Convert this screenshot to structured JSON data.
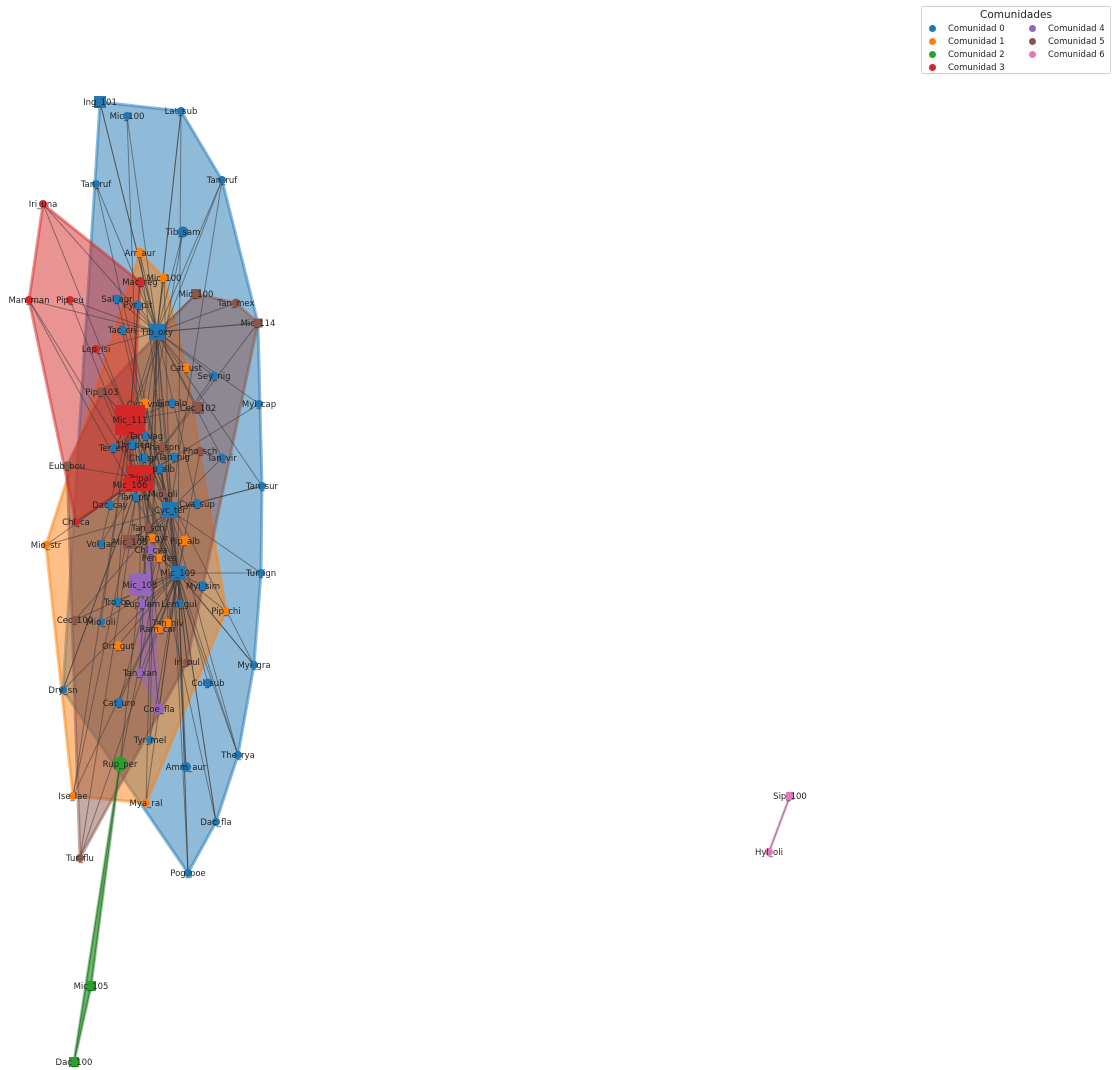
{
  "legend": {
    "title": "Comunidades",
    "entries": [
      {
        "label": "Comunidad 0",
        "color": "#1f77b4"
      },
      {
        "label": "Comunidad 1",
        "color": "#ff7f0e"
      },
      {
        "label": "Comunidad 2",
        "color": "#2ca02c"
      },
      {
        "label": "Comunidad 3",
        "color": "#d62728"
      },
      {
        "label": "Comunidad 4",
        "color": "#9467bd"
      },
      {
        "label": "Comunidad 5",
        "color": "#8c564b"
      },
      {
        "label": "Comunidad 6",
        "color": "#e377c2"
      }
    ]
  },
  "nodes": [
    {
      "id": "Ing_101",
      "c": 0,
      "s": "sq"
    },
    {
      "id": "Mic_100",
      "c": 0,
      "s": "o"
    },
    {
      "id": "Lat_sub",
      "c": 0,
      "s": "o"
    },
    {
      "id": "Tan_ruf",
      "c": 0,
      "s": "o"
    },
    {
      "id": "Tan_ruf2",
      "label": "Tan_ruf",
      "c": 0,
      "s": "o"
    },
    {
      "id": "Iri_una",
      "c": 3,
      "s": "o"
    },
    {
      "id": "Tib_sam",
      "c": 0,
      "s": "o"
    },
    {
      "id": "Arr_aur",
      "c": 1,
      "s": "o"
    },
    {
      "id": "Mic_100b",
      "label": "Mic_100",
      "c": 1,
      "s": "o"
    },
    {
      "id": "Mac_reg",
      "c": 3,
      "s": "o"
    },
    {
      "id": "Mic_100c",
      "label": "Mic_100",
      "c": 5,
      "s": "sq"
    },
    {
      "id": "Man_man",
      "c": 3,
      "s": "o"
    },
    {
      "id": "Pip_eu",
      "c": 3,
      "s": "o"
    },
    {
      "id": "Sal_aur",
      "c": 0,
      "s": "o"
    },
    {
      "id": "Pyr_pit",
      "c": 0,
      "s": "o"
    },
    {
      "id": "Tan_mex",
      "c": 5,
      "s": "o"
    },
    {
      "id": "Mic_114",
      "c": 5,
      "s": "sq"
    },
    {
      "id": "Tac_cri",
      "c": 0,
      "s": "o"
    },
    {
      "id": "Tib_oxy",
      "c": 0,
      "s": "sq"
    },
    {
      "id": "Lep_isi",
      "c": 3,
      "s": "o"
    },
    {
      "id": "Cat_ust",
      "c": 1,
      "s": "o"
    },
    {
      "id": "Sey_nig",
      "c": 0,
      "s": "o"
    },
    {
      "id": "Pip_103",
      "c": 5,
      "s": "sq"
    },
    {
      "id": "Cyp_vno",
      "c": 1,
      "s": "o"
    },
    {
      "id": "Sin_alo",
      "c": 0,
      "s": "o"
    },
    {
      "id": "Cec_102",
      "c": 5,
      "s": "sq"
    },
    {
      "id": "Myi_cap",
      "c": 0,
      "s": "o"
    },
    {
      "id": "Mic_111",
      "c": 3,
      "s": "sq"
    },
    {
      "id": "Tan_vag",
      "c": 0,
      "s": "o"
    },
    {
      "id": "Ter_ery",
      "c": 0,
      "s": "o"
    },
    {
      "id": "Thr_pec",
      "c": 0,
      "s": "o"
    },
    {
      "id": "Pha_spn",
      "c": 5,
      "s": "o"
    },
    {
      "id": "Pho_sch",
      "c": 5,
      "s": "o"
    },
    {
      "id": "Chl_sp",
      "c": 0,
      "s": "o"
    },
    {
      "id": "Tan_nig",
      "c": 0,
      "s": "o"
    },
    {
      "id": "Tan_vir",
      "c": 0,
      "s": "o"
    },
    {
      "id": "Eub_bou",
      "c": 5,
      "s": "o"
    },
    {
      "id": "Pip_alb",
      "c": 0,
      "s": "o"
    },
    {
      "id": "Tripal",
      "c": 3,
      "s": "sq"
    },
    {
      "id": "Mic_106",
      "c": 3,
      "s": "sq"
    },
    {
      "id": "Tan_sur",
      "c": 0,
      "s": "o"
    },
    {
      "id": "Dac_cay",
      "c": 0,
      "s": "o"
    },
    {
      "id": "Tan_ptr",
      "c": 0,
      "s": "o"
    },
    {
      "id": "Mio_oli",
      "c": 5,
      "s": "o"
    },
    {
      "id": "Cyc_ter",
      "c": 0,
      "s": "sq"
    },
    {
      "id": "Cya_sup",
      "c": 0,
      "s": "o"
    },
    {
      "id": "Chl_ca",
      "c": 3,
      "s": "o"
    },
    {
      "id": "Tan_sch",
      "c": 5,
      "s": "o"
    },
    {
      "id": "Mio_str",
      "c": 1,
      "s": "o"
    },
    {
      "id": "Vol_jac",
      "c": 0,
      "s": "o"
    },
    {
      "id": "Mic_108",
      "c": 5,
      "s": "sq"
    },
    {
      "id": "Tan_gyr",
      "c": 1,
      "s": "o"
    },
    {
      "id": "Chl_cya",
      "c": 4,
      "s": "o"
    },
    {
      "id": "Pen_des",
      "c": 1,
      "s": "o"
    },
    {
      "id": "Pip_alb2",
      "label": "Pip_alb",
      "c": 1,
      "s": "o"
    },
    {
      "id": "Mic_109",
      "c": 0,
      "s": "sq"
    },
    {
      "id": "Mic_108b",
      "label": "Mic_108",
      "c": 4,
      "s": "sq"
    },
    {
      "id": "Myi_sim",
      "c": 0,
      "s": "o"
    },
    {
      "id": "Tur_ign",
      "c": 0,
      "s": "o"
    },
    {
      "id": "Tro_co",
      "c": 0,
      "s": "o"
    },
    {
      "id": "Eup_lam",
      "c": 4,
      "s": "o"
    },
    {
      "id": "Lem_gui",
      "c": 0,
      "s": "o"
    },
    {
      "id": "Pip_chi",
      "c": 1,
      "s": "o"
    },
    {
      "id": "Cec_100",
      "c": 5,
      "s": "o"
    },
    {
      "id": "Mio_oli2",
      "label": "Mio_oli",
      "c": 0,
      "s": "o"
    },
    {
      "id": "Tan_niv",
      "c": 1,
      "s": "o"
    },
    {
      "id": "Ram_car",
      "c": 1,
      "s": "o"
    },
    {
      "id": "Ort_gut",
      "c": 1,
      "s": "o"
    },
    {
      "id": "Iri_pul",
      "c": 5,
      "s": "o"
    },
    {
      "id": "Myi_gra",
      "c": 0,
      "s": "o"
    },
    {
      "id": "Tan_xan",
      "c": 4,
      "s": "o"
    },
    {
      "id": "Dry_sn",
      "c": 0,
      "s": "o"
    },
    {
      "id": "Col_sub",
      "c": 0,
      "s": "o"
    },
    {
      "id": "Cat_uro",
      "c": 0,
      "s": "o"
    },
    {
      "id": "Coe_fla",
      "c": 4,
      "s": "o"
    },
    {
      "id": "Tyr_mel",
      "c": 0,
      "s": "o"
    },
    {
      "id": "The_rya",
      "c": 0,
      "s": "o"
    },
    {
      "id": "Rup_per",
      "c": 2,
      "s": "o"
    },
    {
      "id": "Amm_aur",
      "c": 0,
      "s": "o"
    },
    {
      "id": "Ise_lae",
      "c": 1,
      "s": "o"
    },
    {
      "id": "Mya_ral",
      "c": 1,
      "s": "o"
    },
    {
      "id": "Dac_fla",
      "c": 0,
      "s": "o"
    },
    {
      "id": "Tur_flu",
      "c": 5,
      "s": "o"
    },
    {
      "id": "Pog_poe",
      "c": 0,
      "s": "o"
    },
    {
      "id": "Mic_105",
      "c": 2,
      "s": "sq"
    },
    {
      "id": "Dac_100",
      "c": 2,
      "s": "sq"
    },
    {
      "id": "Sip_100",
      "c": 6,
      "s": "sq"
    },
    {
      "id": "Hyl_oli",
      "c": 6,
      "s": "o"
    }
  ]
}
